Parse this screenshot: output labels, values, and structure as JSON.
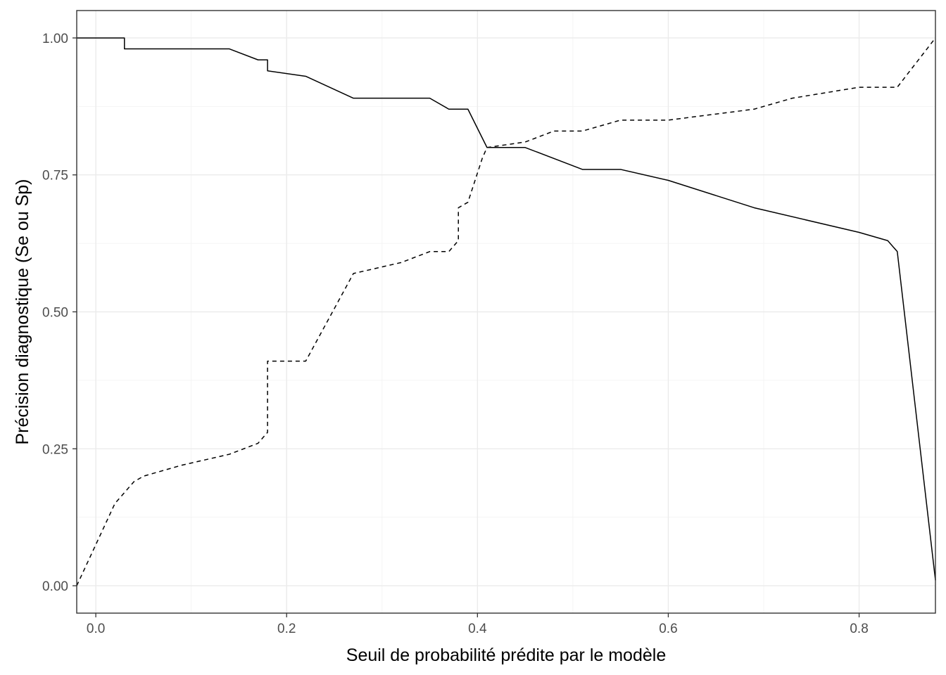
{
  "chart_data": {
    "type": "line",
    "title": "",
    "xlabel": "Seuil de probabilité prédite par le modèle",
    "ylabel": "Précision diagnostique (Se ou Sp)",
    "xlim": [
      -0.02,
      0.88
    ],
    "ylim": [
      -0.05,
      1.05
    ],
    "x_ticks": [
      0.0,
      0.2,
      0.4,
      0.6,
      0.8
    ],
    "x_tick_labels": [
      "0.0",
      "0.2",
      "0.4",
      "0.6",
      "0.8"
    ],
    "y_ticks": [
      0.0,
      0.25,
      0.5,
      0.75,
      1.0
    ],
    "y_tick_labels": [
      "0.00",
      "0.25",
      "0.50",
      "0.75",
      "1.00"
    ],
    "grid": true,
    "legend": "none",
    "colors": {
      "line": "#000000",
      "grid_major": "#ebebeb",
      "grid_minor": "#f2f2f2",
      "panel_border": "#333333",
      "background": "#ffffff"
    },
    "series": [
      {
        "line_style": "solid",
        "points": [
          [
            -0.02,
            1.0
          ],
          [
            0.03,
            1.0
          ],
          [
            0.03,
            0.98
          ],
          [
            0.14,
            0.98
          ],
          [
            0.17,
            0.96
          ],
          [
            0.18,
            0.96
          ],
          [
            0.18,
            0.94
          ],
          [
            0.22,
            0.93
          ],
          [
            0.27,
            0.89
          ],
          [
            0.35,
            0.89
          ],
          [
            0.37,
            0.87
          ],
          [
            0.39,
            0.87
          ],
          [
            0.41,
            0.8
          ],
          [
            0.45,
            0.8
          ],
          [
            0.51,
            0.76
          ],
          [
            0.55,
            0.76
          ],
          [
            0.6,
            0.74
          ],
          [
            0.69,
            0.69
          ],
          [
            0.8,
            0.645
          ],
          [
            0.83,
            0.63
          ],
          [
            0.84,
            0.61
          ],
          [
            0.88,
            0.01
          ]
        ]
      },
      {
        "line_style": "dashed",
        "points": [
          [
            -0.02,
            0.0
          ],
          [
            0.02,
            0.15
          ],
          [
            0.04,
            0.19
          ],
          [
            0.05,
            0.2
          ],
          [
            0.06,
            0.205
          ],
          [
            0.09,
            0.22
          ],
          [
            0.14,
            0.24
          ],
          [
            0.17,
            0.26
          ],
          [
            0.18,
            0.28
          ],
          [
            0.18,
            0.41
          ],
          [
            0.22,
            0.41
          ],
          [
            0.27,
            0.57
          ],
          [
            0.32,
            0.59
          ],
          [
            0.35,
            0.61
          ],
          [
            0.37,
            0.61
          ],
          [
            0.38,
            0.63
          ],
          [
            0.38,
            0.69
          ],
          [
            0.39,
            0.7
          ],
          [
            0.405,
            0.78
          ],
          [
            0.41,
            0.8
          ],
          [
            0.45,
            0.81
          ],
          [
            0.48,
            0.83
          ],
          [
            0.51,
            0.83
          ],
          [
            0.55,
            0.85
          ],
          [
            0.6,
            0.85
          ],
          [
            0.69,
            0.87
          ],
          [
            0.73,
            0.89
          ],
          [
            0.8,
            0.91
          ],
          [
            0.84,
            0.91
          ],
          [
            0.88,
            1.0
          ]
        ]
      }
    ]
  }
}
